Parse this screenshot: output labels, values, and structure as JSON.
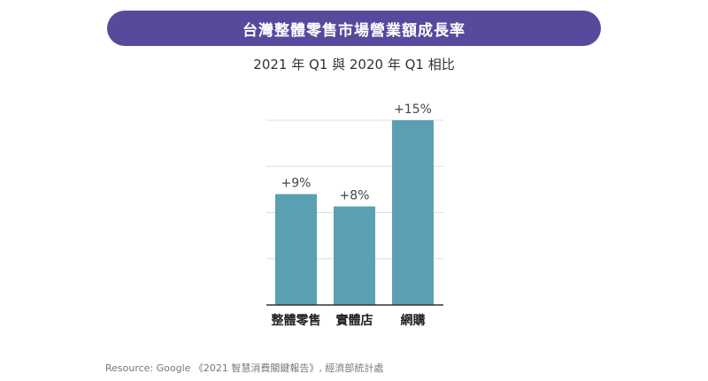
{
  "title": "台灣整體零售市場營業額成長率",
  "subtitle": "2021 年 Q1 與 2020 年 Q1 相比",
  "source": "Resource: Google 《2021 智慧消費關鍵報告》, 經濟部統計處",
  "colors": {
    "title_bg": "#554a9c",
    "bar": "#5b9fb3",
    "grid": "#dddddd",
    "axis": "#333333"
  },
  "chart_data": {
    "type": "bar",
    "title": "台灣整體零售市場營業額成長率",
    "subtitle": "2021 年 Q1 與 2020 年 Q1 相比",
    "categories": [
      "整體零售",
      "實體店",
      "網購"
    ],
    "values": [
      9,
      8,
      15
    ],
    "value_labels": [
      "+9%",
      "+8%",
      "+15%"
    ],
    "ylim": [
      0,
      15
    ],
    "grid": true,
    "gridline_values": [
      0,
      3.75,
      7.5,
      11.25,
      15
    ],
    "xlabel": "",
    "ylabel": ""
  }
}
